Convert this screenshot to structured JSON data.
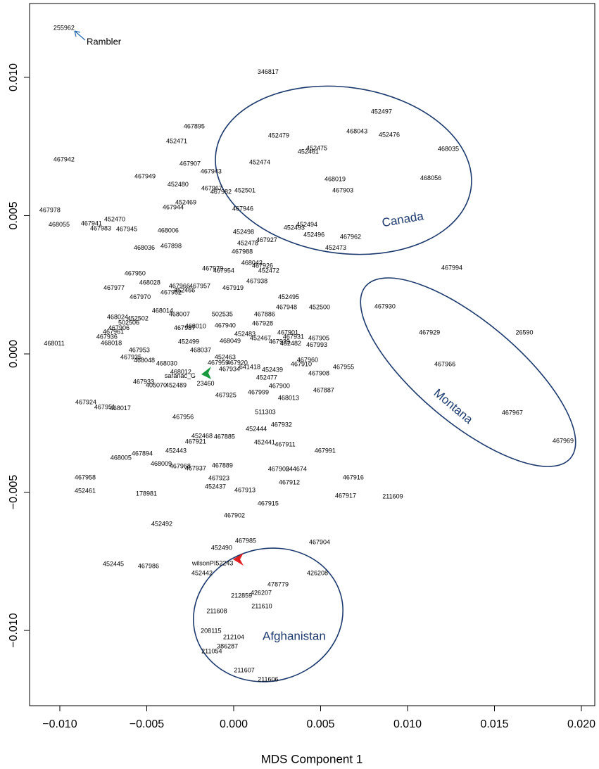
{
  "chart_data": {
    "type": "scatter",
    "x_label": "MDS Component 1",
    "xlim": [
      -0.01174,
      0.02077
    ],
    "ylim": [
      -0.01272,
      0.01267
    ],
    "xticks": [
      {
        "value": -0.01,
        "label": "−0.010"
      },
      {
        "value": -0.005,
        "label": "−0.005"
      },
      {
        "value": 0,
        "label": "0.000"
      },
      {
        "value": 0.005,
        "label": "0.005"
      },
      {
        "value": 0.01,
        "label": "0.010"
      },
      {
        "value": 0.015,
        "label": "0.015"
      },
      {
        "value": 0.02,
        "label": "0.020"
      }
    ],
    "yticks": [
      {
        "value": -0.01,
        "label": "−0.010"
      },
      {
        "value": -0.005,
        "label": "−0.005"
      },
      {
        "value": 0,
        "label": "0.000"
      },
      {
        "value": 0.005,
        "label": "0.005"
      },
      {
        "value": 0.01,
        "label": "0.010"
      }
    ],
    "annotations": [
      "Rambler",
      "Canada",
      "Montana",
      "Afghanistan"
    ],
    "labels": [
      "255962",
      "346817",
      "452497",
      "467895",
      "468043",
      "452479",
      "452476",
      "452471",
      "452475",
      "452461",
      "468035",
      "467942",
      "452474",
      "467907",
      "467943",
      "467949",
      "468019",
      "468056",
      "452480",
      "467967",
      "467982",
      "452501",
      "467903",
      "452469",
      "467944",
      "467946",
      "467978",
      "452470",
      "467941",
      "468055",
      "467983",
      "467945",
      "468006",
      "452494",
      "452493",
      "452498",
      "452496",
      "467962",
      "467927",
      "452478",
      "467898",
      "468036",
      "452473",
      "467988",
      "468042",
      "467926",
      "467979",
      "467954",
      "452472",
      "467994",
      "467950",
      "468028",
      "467938",
      "467966",
      "467957",
      "467977",
      "452466",
      "467919",
      "467952",
      "467970",
      "452495",
      "467930",
      "467948",
      "452500",
      "468014",
      "468007",
      "502535",
      "467886",
      "468024",
      "452502",
      "502506",
      "467928",
      "468010",
      "467940",
      "467906",
      "467987",
      "467961",
      "467929",
      "26590",
      "452483",
      "467901",
      "467936",
      "467931",
      "467905",
      "452467",
      "468049",
      "452499",
      "467939",
      "452482",
      "467993",
      "468018",
      "468011",
      "467953",
      "468037",
      "467935",
      "452463",
      "467910",
      "467960",
      "468048",
      "467959",
      "467920",
      "468030",
      "641418",
      "467955",
      "467966",
      "467934",
      "452439",
      "468012",
      "467908",
      "saranac_G",
      "452477",
      "467933",
      "405070",
      "452489",
      "23460",
      "467900",
      "467887",
      "467999",
      "467925",
      "468013",
      "467924",
      "467951",
      "468017",
      "511303",
      "467967",
      "467956",
      "467932",
      "452444",
      "452468",
      "467885",
      "467969",
      "467921",
      "452441",
      "467911",
      "452443",
      "467991",
      "467894",
      "468005",
      "468009",
      "467968",
      "467937",
      "467889",
      "467909",
      "244674",
      "467958",
      "467923",
      "467916",
      "467912",
      "452437",
      "467913",
      "452461",
      "178981",
      "467917",
      "211609",
      "467915",
      "467902",
      "452492",
      "467985",
      "467904",
      "452490",
      "452445",
      "467986",
      "wilsonPI52243",
      "452442",
      "426208",
      "478779",
      "426207",
      "212859",
      "211610",
      "211608",
      "208115",
      "212104",
      "386287",
      "211054",
      "211607",
      "211606"
    ],
    "x": [
      -0.00976,
      0.00198,
      0.0085,
      -0.00227,
      0.00709,
      0.00259,
      0.00895,
      -0.00328,
      0.00478,
      0.00429,
      0.01235,
      -0.00976,
      0.0015,
      -0.00251,
      -0.0013,
      -0.0051,
      0.00583,
      0.01134,
      -0.0032,
      -0.00126,
      -0.00073,
      0.00065,
      0.00628,
      -0.00275,
      -0.00348,
      0.00053,
      -0.01057,
      -0.00684,
      -0.00818,
      -0.01004,
      -0.00765,
      -0.00615,
      -0.00377,
      0.00421,
      0.00348,
      0.00057,
      0.00462,
      0.00672,
      0.0019,
      0.00081,
      -0.0036,
      -0.00514,
      0.00587,
      0.00049,
      0.00105,
      0.00166,
      -0.00121,
      -0.00057,
      0.00202,
      0.01255,
      -0.00567,
      -0.00482,
      0.00134,
      -0.00312,
      -0.00194,
      -0.00688,
      -0.00283,
      -4e-05,
      -0.0036,
      -0.00538,
      0.00316,
      0.0087,
      0.00304,
      0.00494,
      -0.00409,
      -0.00312,
      -0.00065,
      0.00178,
      -0.00668,
      -0.00551,
      -0.00603,
      0.00166,
      -0.00219,
      -0.00049,
      -0.0066,
      -0.00283,
      -0.00692,
      0.01126,
      0.01672,
      0.00065,
      0.00312,
      -0.00729,
      0.00344,
      0.0049,
      0.00154,
      -0.0002,
      -0.00259,
      0.00263,
      0.00328,
      0.00478,
      -0.00704,
      -0.01032,
      -0.00543,
      -0.0019,
      -0.00591,
      -0.00049,
      0.00389,
      0.00425,
      -0.00514,
      -0.00089,
      0.0002,
      -0.00385,
      0.00093,
      0.00632,
      0.01215,
      -0.00024,
      0.00223,
      -0.00304,
      0.0049,
      -0.00308,
      0.0019,
      -0.00518,
      -0.00445,
      -0.00332,
      -0.00162,
      0.00263,
      0.00518,
      0.00142,
      -0.00045,
      0.00316,
      -0.0085,
      -0.00741,
      -0.00652,
      0.00182,
      0.01603,
      -0.00291,
      0.00275,
      0.0013,
      -0.00182,
      -0.00053,
      0.01895,
      -0.00219,
      0.00178,
      0.00296,
      -0.00332,
      0.00526,
      -0.00526,
      -0.00648,
      -0.00417,
      -0.00308,
      -0.00219,
      -0.00065,
      0.00259,
      0.0036,
      -0.00854,
      -0.00085,
      0.00688,
      0.0032,
      -0.00105,
      0.00065,
      -0.00854,
      -0.00502,
      0.00644,
      0.00915,
      0.00198,
      4e-05,
      -0.00413,
      0.00069,
      0.00494,
      -0.00069,
      -0.00692,
      -0.0049,
      -0.00121,
      -0.00182,
      0.00482,
      0.00255,
      0.00158,
      0.00045,
      0.00162,
      -0.00097,
      -0.0013,
      0,
      -0.00036,
      -0.00126,
      0.00061,
      0.00198
    ],
    "y": [
      0.01178,
      0.01018,
      0.00875,
      0.00822,
      0.00804,
      0.00789,
      0.00791,
      0.00768,
      0.00743,
      0.0073,
      0.0074,
      0.00702,
      0.00692,
      0.00687,
      0.00659,
      0.00641,
      0.00631,
      0.00634,
      0.00611,
      0.00598,
      0.00585,
      0.0059,
      0.0059,
      0.00547,
      0.00529,
      0.00524,
      0.00519,
      0.00486,
      0.00471,
      0.00466,
      0.00453,
      0.0045,
      0.00445,
      0.00466,
      0.00455,
      0.0044,
      0.0043,
      0.00422,
      0.0041,
      0.00399,
      0.00389,
      0.00382,
      0.00382,
      0.00369,
      0.00328,
      0.00318,
      0.00308,
      0.003,
      0.003,
      0.0031,
      0.0029,
      0.00257,
      0.00262,
      0.00244,
      0.00244,
      0.00237,
      0.00229,
      0.00237,
      0.00221,
      0.00204,
      0.00204,
      0.0017,
      0.00168,
      0.00168,
      0.00155,
      0.00142,
      0.00142,
      0.00142,
      0.00132,
      0.00127,
      0.00112,
      0.00109,
      0.00099,
      0.00102,
      0.00092,
      0.00092,
      0.00079,
      0.00076,
      0.00076,
      0.00071,
      0.00076,
      0.00061,
      0.00061,
      0.00056,
      0.00056,
      0.00046,
      0.00043,
      0.00043,
      0.00036,
      0.00031,
      0.00038,
      0.00036,
      0.00013,
      0.00013,
      -0.00013,
      -0.00013,
      -0.00038,
      -0.00023,
      -0.00025,
      -0.00033,
      -0.00033,
      -0.00036,
      -0.00048,
      -0.00048,
      -0.00038,
      -0.00056,
      -0.00059,
      -0.00066,
      -0.00071,
      -0.00081,
      -0.00087,
      -0.00102,
      -0.00115,
      -0.00115,
      -0.00109,
      -0.00117,
      -0.00132,
      -0.0014,
      -0.0015,
      -0.0016,
      -0.00176,
      -0.00193,
      -0.00198,
      -0.00211,
      -0.00214,
      -0.00229,
      -0.00257,
      -0.00272,
      -0.00298,
      -0.003,
      -0.00316,
      -0.00318,
      -0.00321,
      -0.00328,
      -0.00351,
      -0.00351,
      -0.00361,
      -0.00377,
      -0.00399,
      -0.00407,
      -0.00415,
      -0.00405,
      -0.00417,
      -0.00417,
      -0.00448,
      -0.0045,
      -0.00448,
      -0.00466,
      -0.00481,
      -0.00494,
      -0.00496,
      -0.00506,
      -0.00514,
      -0.00517,
      -0.00542,
      -0.00585,
      -0.00616,
      -0.00677,
      -0.00682,
      -0.00702,
      -0.00761,
      -0.00768,
      -0.00758,
      -0.00794,
      -0.00794,
      -0.00835,
      -0.00865,
      -0.00875,
      -0.00913,
      -0.00931,
      -0.01003,
      -0.01025,
      -0.01059,
      -0.01076,
      -0.01145,
      -0.01178
    ]
  }
}
